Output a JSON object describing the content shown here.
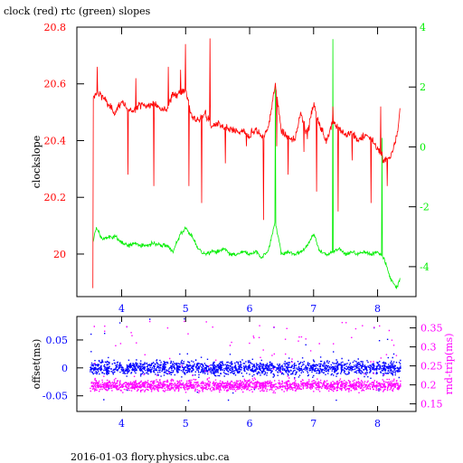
{
  "header": {
    "title": "clock (red) rtc (green) slopes"
  },
  "footer": {
    "caption": "2016-01-03 flory.physics.ubc.ca"
  },
  "colors": {
    "clock": "#ff0000",
    "rtc": "#00ee00",
    "offset": "#0000ff",
    "rndtrip": "#ff00ff",
    "frame": "#000000"
  },
  "chart_data": [
    {
      "type": "line",
      "title": "clock (red) rtc (green) slopes",
      "ylabel": "clockslope",
      "grid": false,
      "xlim": [
        3.3,
        8.6
      ],
      "xticks": [
        "4",
        "5",
        "6",
        "7",
        "8"
      ],
      "xtick_values": [
        4,
        5,
        6,
        7,
        8
      ],
      "ylim": [
        19.85,
        20.8
      ],
      "yticks": [
        "20",
        "20.2",
        "20.4",
        "20.6",
        "20.8"
      ],
      "ytick_values": [
        20,
        20.2,
        20.4,
        20.6,
        20.8
      ],
      "y2lim": [
        -5,
        4
      ],
      "y2ticks": [
        "-4",
        "-2",
        "0",
        "2",
        "4"
      ],
      "y2tick_values": [
        -4,
        -2,
        0,
        2,
        4
      ],
      "series": [
        {
          "color": "red",
          "axis": "left",
          "x": [
            3.55,
            3.6,
            3.7,
            3.8,
            3.9,
            4.0,
            4.1,
            4.2,
            4.3,
            4.4,
            4.5,
            4.6,
            4.7,
            4.8,
            4.9,
            5.0,
            5.1,
            5.2,
            5.3,
            5.4,
            5.5,
            5.6,
            5.7,
            5.8,
            5.9,
            6.0,
            6.1,
            6.2,
            6.3,
            6.4,
            6.5,
            6.6,
            6.7,
            6.8,
            6.9,
            7.0,
            7.1,
            7.2,
            7.3,
            7.4,
            7.5,
            7.6,
            7.7,
            7.8,
            7.9,
            8.0,
            8.1,
            8.2,
            8.3,
            8.35
          ],
          "y": [
            20.54,
            20.57,
            20.56,
            20.52,
            20.5,
            20.54,
            20.5,
            20.51,
            20.53,
            20.52,
            20.53,
            20.52,
            20.51,
            20.56,
            20.57,
            20.58,
            20.48,
            20.47,
            20.5,
            20.45,
            20.46,
            20.44,
            20.44,
            20.43,
            20.43,
            20.42,
            20.44,
            20.41,
            20.45,
            20.6,
            20.43,
            20.41,
            20.4,
            20.5,
            20.42,
            20.53,
            20.45,
            20.4,
            20.47,
            20.44,
            20.42,
            20.43,
            20.4,
            20.42,
            20.41,
            20.37,
            20.33,
            20.34,
            20.42,
            20.5
          ]
        },
        {
          "color": "green",
          "axis": "right",
          "x": [
            3.55,
            3.6,
            3.7,
            3.8,
            3.9,
            4.0,
            4.1,
            4.2,
            4.3,
            4.4,
            4.5,
            4.6,
            4.7,
            4.8,
            4.9,
            5.0,
            5.1,
            5.2,
            5.3,
            5.4,
            5.5,
            5.6,
            5.7,
            5.8,
            5.9,
            6.0,
            6.1,
            6.2,
            6.3,
            6.4,
            6.5,
            6.6,
            6.7,
            6.8,
            6.9,
            7.0,
            7.1,
            7.2,
            7.3,
            7.4,
            7.5,
            7.6,
            7.7,
            7.8,
            7.9,
            8.0,
            8.1,
            8.2,
            8.3,
            8.35
          ],
          "y": [
            -3.2,
            -2.7,
            -3.1,
            -3.0,
            -3.0,
            -3.2,
            -3.3,
            -3.2,
            -3.3,
            -3.3,
            -3.2,
            -3.3,
            -3.3,
            -3.5,
            -3.0,
            -2.7,
            -3.0,
            -3.4,
            -3.6,
            -3.5,
            -3.5,
            -3.4,
            -3.6,
            -3.6,
            -3.5,
            -3.6,
            -3.5,
            -3.7,
            -3.4,
            -2.5,
            -3.6,
            -3.5,
            -3.6,
            -3.5,
            -3.3,
            -2.9,
            -3.5,
            -3.6,
            -3.5,
            -3.4,
            -3.6,
            -3.5,
            -3.6,
            -3.5,
            -3.6,
            -3.5,
            -3.7,
            -4.4,
            -4.7,
            -4.4
          ]
        }
      ]
    },
    {
      "type": "scatter",
      "ylabel": "offset(ms)",
      "y2label": "rnd-trip(ms)",
      "grid": false,
      "xlim": [
        3.3,
        8.6
      ],
      "xticks": [
        "4",
        "5",
        "6",
        "7",
        "8"
      ],
      "xtick_values": [
        4,
        5,
        6,
        7,
        8
      ],
      "ylim": [
        -0.078,
        0.092
      ],
      "yticks": [
        "-0.05",
        "0",
        "0.05"
      ],
      "ytick_values": [
        -0.05,
        0,
        0.05
      ],
      "y2lim": [
        0.13,
        0.38
      ],
      "y2ticks": [
        "0.15",
        "0.2",
        "0.25",
        "0.3",
        "0.35"
      ],
      "y2tick_values": [
        0.15,
        0.2,
        0.25,
        0.3,
        0.35
      ],
      "series": [
        {
          "color": "blue",
          "axis": "left",
          "x_range": [
            3.5,
            8.35
          ],
          "y_center": 0.001,
          "y_band": [
            -0.02,
            0.025
          ],
          "y_extremes": [
            -0.06,
            0.09
          ]
        },
        {
          "color": "magenta",
          "axis": "right",
          "x_range": [
            3.5,
            8.35
          ],
          "y_center": 0.2,
          "y_band": [
            0.175,
            0.225
          ],
          "y_extremes": [
            0.15,
            0.37
          ]
        }
      ]
    }
  ]
}
